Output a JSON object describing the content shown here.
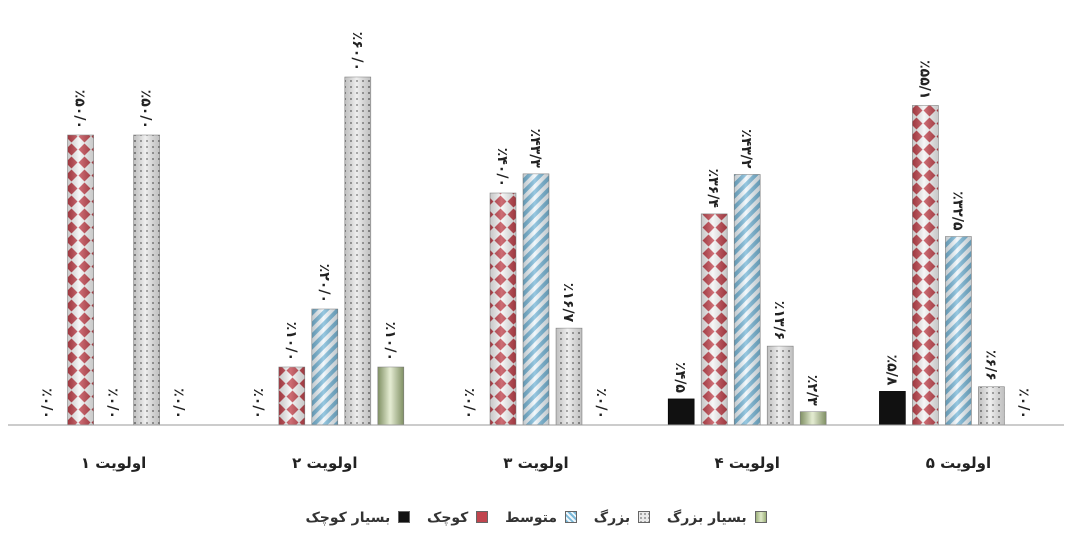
{
  "chart_data": {
    "type": "bar",
    "categories": [
      "اولویت ۱",
      "اولویت ۲",
      "اولویت ۳",
      "اولویت ۴",
      "اولویت ۵"
    ],
    "series": [
      {
        "name": "بسیار کوچک",
        "color": "#111111",
        "values": [
          0,
          0,
          0,
          4.5,
          5.8
        ],
        "labels": [
          "٪۰/۰",
          "٪۰/۰",
          "٪۰/۰",
          "٪۴/۵",
          "٪۵/۸"
        ]
      },
      {
        "name": "کوچک",
        "color": "#c0454e",
        "values": [
          50.0,
          10.0,
          40.0,
          36.4,
          55.1
        ],
        "labels": [
          "٪۵۰/۰",
          "٪۱۰/۰",
          "٪۴۰/۰",
          "٪۳۶/۴",
          "٪۵۵/۱"
        ]
      },
      {
        "name": "متوسط",
        "color": "#7ab8d8",
        "values": [
          0,
          20.0,
          43.3,
          43.2,
          32.5
        ],
        "labels": [
          "٪۰/۰",
          "٪۲۰/۰",
          "٪۴۳/۳",
          "٪۴۳/۲",
          "٪۳۲/۵"
        ]
      },
      {
        "name": "بزرگ",
        "color": "#d4d4d4",
        "values": [
          50.0,
          60.0,
          16.7,
          13.6,
          6.6
        ],
        "labels": [
          "٪۵۰/۰",
          "٪۶۰/۰",
          "٪۱۶/۷",
          "٪۱۳/۶",
          "٪۶/۶"
        ]
      },
      {
        "name": "بسیار بزرگ",
        "color": "#c4d4a4",
        "values": [
          0,
          10.0,
          0,
          2.3,
          0
        ],
        "labels": [
          "٪۰/۰",
          "٪۱۰/۰",
          "٪۰/۰",
          "٪۲/۳",
          "٪۰/۰"
        ]
      }
    ],
    "ylim": [
      0,
      60
    ],
    "grid": false,
    "legend": "bottom",
    "legend_order": [
      "بسیار بزرگ",
      "بزرگ",
      "متوسط",
      "کوچک",
      "بسیار کوچک"
    ]
  }
}
